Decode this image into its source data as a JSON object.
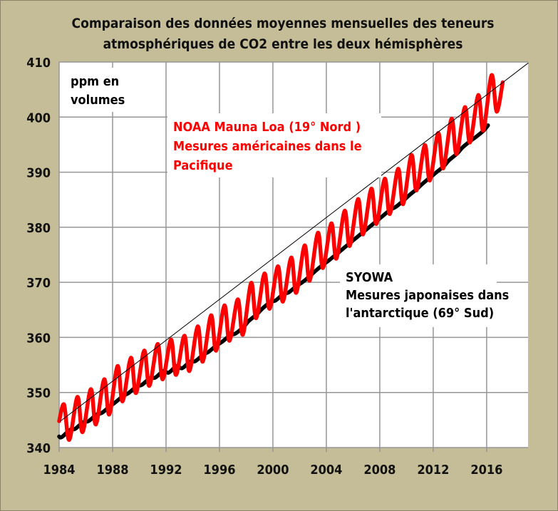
{
  "chart_data": {
    "type": "line",
    "title": [
      "Comparaison des données moyennes mensuelles des teneurs",
      "atmosphériques de CO2 entre les deux hémisphères"
    ],
    "ylabel": "ppm en volumes",
    "xlim": [
      1984,
      2019.1
    ],
    "ylim": [
      340,
      410
    ],
    "xticks": [
      1984,
      1988,
      1992,
      1996,
      2000,
      2004,
      2008,
      2012,
      2016
    ],
    "yticks": [
      340,
      350,
      360,
      370,
      380,
      390,
      400,
      410
    ],
    "grid": true,
    "colors": {
      "background": "#C4BD97",
      "plot": "#FFFFFF",
      "grid": "#969696",
      "noaa": "#FF0000",
      "syowa": "#000000",
      "trend": "#000000"
    },
    "annotations": {
      "noaa": [
        "NOAA  Mauna Loa (19° Nord )",
        "Mesures américaines dans le",
        "Pacifique"
      ],
      "syowa": [
        "SYOWA",
        "Mesures japonaises  dans",
        "l'antarctique  (69° Sud)"
      ]
    },
    "series": [
      {
        "id": "syowa",
        "color": "#000000",
        "x": [
          1984.0,
          1984.2,
          1984.8,
          1985.2,
          1985.8,
          1986.2,
          1986.8,
          1987.2,
          1987.8,
          1988.2,
          1988.8,
          1989.2,
          1989.8,
          1990.2,
          1990.8,
          1991.2,
          1991.8,
          1992.2,
          1992.8,
          1993.2,
          1993.8,
          1994.2,
          1994.8,
          1995.2,
          1995.8,
          1996.2,
          1996.8,
          1997.2,
          1997.8,
          1998.2,
          1998.8,
          1999.2,
          1999.8,
          2000.2,
          2000.8,
          2001.2,
          2001.8,
          2002.2,
          2002.8,
          2003.2,
          2003.8,
          2004.2,
          2004.8,
          2005.2,
          2005.8,
          2006.2,
          2006.8,
          2007.2,
          2007.8,
          2008.2,
          2008.8,
          2009.2,
          2009.8,
          2010.2,
          2010.8,
          2011.2,
          2011.8,
          2012.2,
          2012.8,
          2013.2,
          2013.8,
          2014.2,
          2014.8,
          2015.2,
          2015.8,
          2016.1
        ],
        "y": [
          342.0,
          341.9,
          343.2,
          343.4,
          344.6,
          344.8,
          346.0,
          346.3,
          347.5,
          348.2,
          349.4,
          349.9,
          351.1,
          351.4,
          352.6,
          352.7,
          353.9,
          353.6,
          354.8,
          354.4,
          355.6,
          355.7,
          356.9,
          357.4,
          358.6,
          359.2,
          360.4,
          360.7,
          361.9,
          363.0,
          364.2,
          365.2,
          366.4,
          366.7,
          367.9,
          368.2,
          369.4,
          370.0,
          371.2,
          372.1,
          373.3,
          374.0,
          375.2,
          376.0,
          377.2,
          378.0,
          379.2,
          380.0,
          381.2,
          382.0,
          383.2,
          383.7,
          384.9,
          385.8,
          387.0,
          387.9,
          389.1,
          389.9,
          391.1,
          392.2,
          393.4,
          394.5,
          395.7,
          396.4,
          397.6,
          398.5
        ]
      },
      {
        "id": "noaa",
        "color": "#FF0000",
        "x": [
          1984.0,
          1984.37,
          1984.75,
          1985.37,
          1985.75,
          1986.37,
          1986.75,
          1987.37,
          1987.75,
          1988.37,
          1988.75,
          1989.37,
          1989.75,
          1990.37,
          1990.75,
          1991.37,
          1991.75,
          1992.37,
          1992.75,
          1993.37,
          1993.75,
          1994.37,
          1994.75,
          1995.37,
          1995.75,
          1996.37,
          1996.75,
          1997.37,
          1997.75,
          1998.37,
          1998.75,
          1999.37,
          1999.75,
          2000.37,
          2000.75,
          2001.37,
          2001.75,
          2002.37,
          2002.75,
          2003.37,
          2003.75,
          2004.37,
          2004.75,
          2005.37,
          2005.75,
          2006.37,
          2006.75,
          2007.37,
          2007.75,
          2008.37,
          2008.75,
          2009.37,
          2009.75,
          2010.37,
          2010.75,
          2011.37,
          2011.75,
          2012.37,
          2012.75,
          2013.37,
          2013.75,
          2014.37,
          2014.75,
          2015.37,
          2015.75,
          2016.37,
          2016.75,
          2017.2
        ],
        "y": [
          344.8,
          347.8,
          341.4,
          349.2,
          342.8,
          350.6,
          344.2,
          352.4,
          346.0,
          354.8,
          348.4,
          356.3,
          349.9,
          357.6,
          351.2,
          358.8,
          352.4,
          359.6,
          353.2,
          360.3,
          353.9,
          362.0,
          355.6,
          364.0,
          357.6,
          365.8,
          359.4,
          366.9,
          360.5,
          369.9,
          363.5,
          371.6,
          365.2,
          372.9,
          366.5,
          374.5,
          368.1,
          376.7,
          370.3,
          379.0,
          372.6,
          380.7,
          374.3,
          383.0,
          376.6,
          385.1,
          378.7,
          387.0,
          380.6,
          388.8,
          382.4,
          390.6,
          384.2,
          393.1,
          386.7,
          394.9,
          388.5,
          397.1,
          390.7,
          399.7,
          393.3,
          401.8,
          395.4,
          404.0,
          397.6,
          407.6,
          401.0,
          406.3
        ]
      },
      {
        "id": "trend",
        "color": "#000000",
        "x": [
          1984.1,
          2019.1
        ],
        "y": [
          344.8,
          409.8
        ]
      }
    ]
  }
}
